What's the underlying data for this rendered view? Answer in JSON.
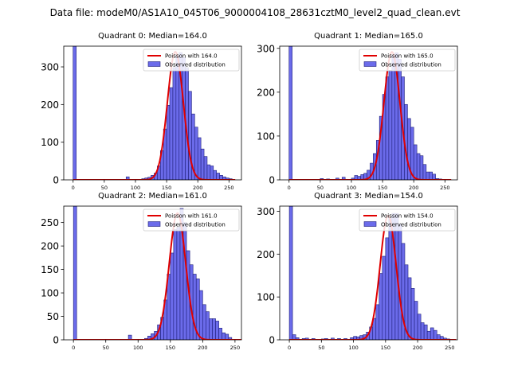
{
  "figure_title": "Data file: modeM0/AS1A10_045T06_9000004108_28631cztM0_level2_quad_clean.evt",
  "colors": {
    "bar_fill": "#6b6bea",
    "bar_edge": "#1f1f7a",
    "curve": "#e00000",
    "axis": "#000000"
  },
  "chart_data": [
    {
      "type": "bar",
      "title": "Quadrant 0: Median=164.0",
      "legend": [
        "Poisson with 164.0",
        "Observed distribution"
      ],
      "legend_position": "top-right",
      "xlim": [
        -15,
        270
      ],
      "ylim": [
        0,
        355
      ],
      "xticks": [
        0,
        50,
        100,
        150,
        200,
        250
      ],
      "yticks": [
        0,
        100,
        200,
        300
      ],
      "bin_width": 5,
      "bins": [
        [
          0,
          355
        ],
        [
          85,
          8
        ],
        [
          110,
          3
        ],
        [
          115,
          5
        ],
        [
          120,
          7
        ],
        [
          125,
          12
        ],
        [
          130,
          18
        ],
        [
          135,
          37
        ],
        [
          140,
          78
        ],
        [
          145,
          135
        ],
        [
          150,
          198
        ],
        [
          155,
          245
        ],
        [
          160,
          298
        ],
        [
          165,
          330
        ],
        [
          170,
          338
        ],
        [
          175,
          325
        ],
        [
          180,
          298
        ],
        [
          185,
          235
        ],
        [
          190,
          175
        ],
        [
          195,
          140
        ],
        [
          200,
          112
        ],
        [
          205,
          82
        ],
        [
          210,
          62
        ],
        [
          215,
          40
        ],
        [
          220,
          37
        ],
        [
          225,
          25
        ],
        [
          230,
          18
        ],
        [
          235,
          12
        ],
        [
          240,
          8
        ],
        [
          245,
          5
        ],
        [
          250,
          3
        ]
      ],
      "poisson_mean": 164.0,
      "poisson_peak": 340,
      "curve_sigma": 12.8
    },
    {
      "type": "bar",
      "title": "Quadrant 1: Median=165.0",
      "legend": [
        "Poisson with 165.0",
        "Observed distribution"
      ],
      "legend_position": "top-right",
      "xlim": [
        -15,
        270
      ],
      "ylim": [
        0,
        305
      ],
      "xticks": [
        0,
        50,
        100,
        150,
        200,
        250
      ],
      "yticks": [
        0,
        100,
        200,
        300
      ],
      "bin_width": 5,
      "bins": [
        [
          0,
          305
        ],
        [
          50,
          3
        ],
        [
          60,
          2
        ],
        [
          75,
          4
        ],
        [
          85,
          6
        ],
        [
          100,
          4
        ],
        [
          105,
          10
        ],
        [
          110,
          8
        ],
        [
          115,
          12
        ],
        [
          120,
          15
        ],
        [
          125,
          22
        ],
        [
          130,
          38
        ],
        [
          135,
          60
        ],
        [
          140,
          90
        ],
        [
          145,
          145
        ],
        [
          150,
          195
        ],
        [
          155,
          235
        ],
        [
          160,
          250
        ],
        [
          165,
          285
        ],
        [
          170,
          290
        ],
        [
          175,
          275
        ],
        [
          180,
          235
        ],
        [
          185,
          172
        ],
        [
          190,
          140
        ],
        [
          195,
          120
        ],
        [
          200,
          80
        ],
        [
          205,
          60
        ],
        [
          210,
          55
        ],
        [
          215,
          35
        ],
        [
          220,
          18
        ],
        [
          225,
          18
        ],
        [
          230,
          13
        ],
        [
          235,
          3
        ],
        [
          240,
          2
        ],
        [
          250,
          1
        ]
      ],
      "poisson_mean": 165.0,
      "poisson_peak": 292,
      "curve_sigma": 12.8
    },
    {
      "type": "bar",
      "title": "Quadrant 2: Median=161.0",
      "legend": [
        "Poisson with 161.0",
        "Observed distribution"
      ],
      "legend_position": "top-right",
      "xlim": [
        -15,
        260
      ],
      "ylim": [
        0,
        285
      ],
      "xticks": [
        0,
        50,
        100,
        150,
        200,
        250
      ],
      "yticks": [
        0,
        50,
        100,
        150,
        200,
        250
      ],
      "bin_width": 5,
      "bins": [
        [
          0,
          285
        ],
        [
          85,
          10
        ],
        [
          110,
          3
        ],
        [
          115,
          8
        ],
        [
          120,
          13
        ],
        [
          125,
          18
        ],
        [
          130,
          32
        ],
        [
          135,
          48
        ],
        [
          140,
          85
        ],
        [
          145,
          140
        ],
        [
          150,
          185
        ],
        [
          155,
          235
        ],
        [
          160,
          240
        ],
        [
          165,
          280
        ],
        [
          170,
          250
        ],
        [
          175,
          190
        ],
        [
          180,
          160
        ],
        [
          185,
          140
        ],
        [
          190,
          130
        ],
        [
          195,
          105
        ],
        [
          200,
          75
        ],
        [
          205,
          60
        ],
        [
          210,
          45
        ],
        [
          215,
          45
        ],
        [
          220,
          40
        ],
        [
          225,
          25
        ],
        [
          230,
          15
        ],
        [
          235,
          12
        ],
        [
          240,
          5
        ]
      ],
      "poisson_mean": 161.0,
      "poisson_peak": 270,
      "curve_sigma": 12.7
    },
    {
      "type": "bar",
      "title": "Quadrant 3: Median=154.0",
      "legend": [
        "Poisson with 154.0",
        "Observed distribution"
      ],
      "legend_position": "top-right",
      "xlim": [
        -15,
        262
      ],
      "ylim": [
        0,
        312
      ],
      "xticks": [
        0,
        50,
        100,
        150,
        200,
        250
      ],
      "yticks": [
        0,
        100,
        200,
        300
      ],
      "bin_width": 5,
      "bins": [
        [
          0,
          312
        ],
        [
          5,
          12
        ],
        [
          10,
          5
        ],
        [
          20,
          3
        ],
        [
          25,
          4
        ],
        [
          35,
          3
        ],
        [
          50,
          2
        ],
        [
          55,
          3
        ],
        [
          65,
          4
        ],
        [
          75,
          3
        ],
        [
          85,
          3
        ],
        [
          95,
          5
        ],
        [
          100,
          8
        ],
        [
          105,
          7
        ],
        [
          110,
          10
        ],
        [
          115,
          12
        ],
        [
          120,
          18
        ],
        [
          125,
          30
        ],
        [
          130,
          50
        ],
        [
          135,
          82
        ],
        [
          140,
          155
        ],
        [
          145,
          195
        ],
        [
          150,
          238
        ],
        [
          155,
          285
        ],
        [
          160,
          295
        ],
        [
          165,
          295
        ],
        [
          170,
          270
        ],
        [
          175,
          225
        ],
        [
          180,
          175
        ],
        [
          185,
          145
        ],
        [
          190,
          120
        ],
        [
          195,
          90
        ],
        [
          200,
          60
        ],
        [
          205,
          40
        ],
        [
          210,
          35
        ],
        [
          215,
          20
        ],
        [
          220,
          28
        ],
        [
          225,
          22
        ],
        [
          230,
          12
        ],
        [
          235,
          8
        ],
        [
          240,
          4
        ],
        [
          245,
          2
        ]
      ],
      "poisson_mean": 154.0,
      "poisson_peak": 290,
      "curve_sigma": 12.4
    }
  ]
}
